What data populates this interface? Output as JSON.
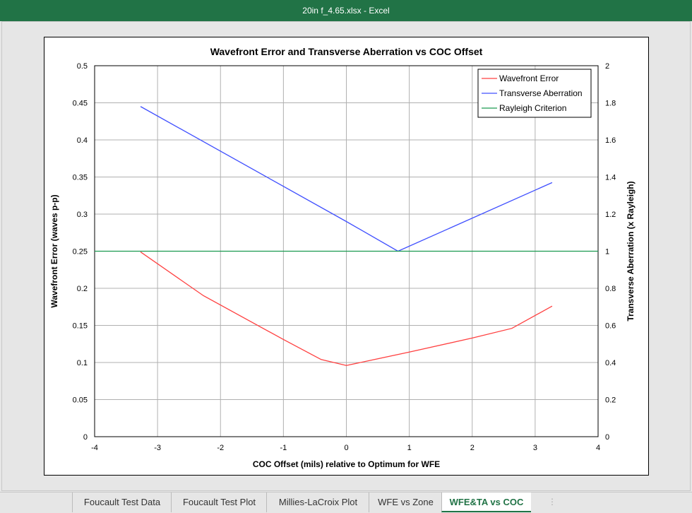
{
  "window": {
    "title": "20in f_4.65.xlsx  -  Excel"
  },
  "sheet_tabs": [
    {
      "label": "Foucault Test Data",
      "active": false
    },
    {
      "label": "Foucault Test Plot",
      "active": false
    },
    {
      "label": "Millies-LaCroix Plot",
      "active": false
    },
    {
      "label": "WFE vs Zone",
      "active": false
    },
    {
      "label": "WFE&TA vs COC",
      "active": true
    }
  ],
  "chart_data": {
    "type": "line",
    "title": "Wavefront Error and Transverse Aberration vs COC Offset",
    "xlabel": "COC Offset (mils) relative to Optimum for WFE",
    "ylabel": "Wavefront Error (waves p-p)",
    "y2label": "Transverse Aberration (x Rayleigh)",
    "xlim": [
      -4,
      4
    ],
    "ylim": [
      0,
      0.5
    ],
    "y2lim": [
      0,
      2
    ],
    "xticks": [
      "-4",
      "-3",
      "-2",
      "-1",
      "0",
      "1",
      "2",
      "3",
      "4"
    ],
    "yticks": [
      "0",
      "0.05",
      "0.1",
      "0.15",
      "0.2",
      "0.25",
      "0.3",
      "0.35",
      "0.4",
      "0.45",
      "0.5"
    ],
    "y2ticks": [
      "0",
      "0.2",
      "0.4",
      "0.6",
      "0.8",
      "1",
      "1.2",
      "1.4",
      "1.6",
      "1.8",
      "2"
    ],
    "grid": true,
    "legend_position": "top-right",
    "series": [
      {
        "name": "Wavefront Error",
        "axis": "left",
        "color": "#ff4040",
        "points": [
          [
            -3.27,
            0.249
          ],
          [
            -2.27,
            0.19
          ],
          [
            -1,
            0.131
          ],
          [
            -0.4,
            0.104
          ],
          [
            0,
            0.096
          ],
          [
            1,
            0.114
          ],
          [
            2,
            0.133
          ],
          [
            2.63,
            0.146
          ],
          [
            3.27,
            0.176
          ]
        ]
      },
      {
        "name": "Transverse Aberration",
        "axis": "right",
        "color": "#4050ff",
        "points": [
          [
            -3.27,
            1.78
          ],
          [
            0,
            1.16
          ],
          [
            0.82,
            1.0
          ],
          [
            3.27,
            1.37
          ]
        ]
      },
      {
        "name": "Rayleigh Criterion",
        "axis": "right",
        "color": "#1a9a50",
        "points": [
          [
            -4,
            1.0
          ],
          [
            4,
            1.0
          ]
        ]
      }
    ]
  }
}
